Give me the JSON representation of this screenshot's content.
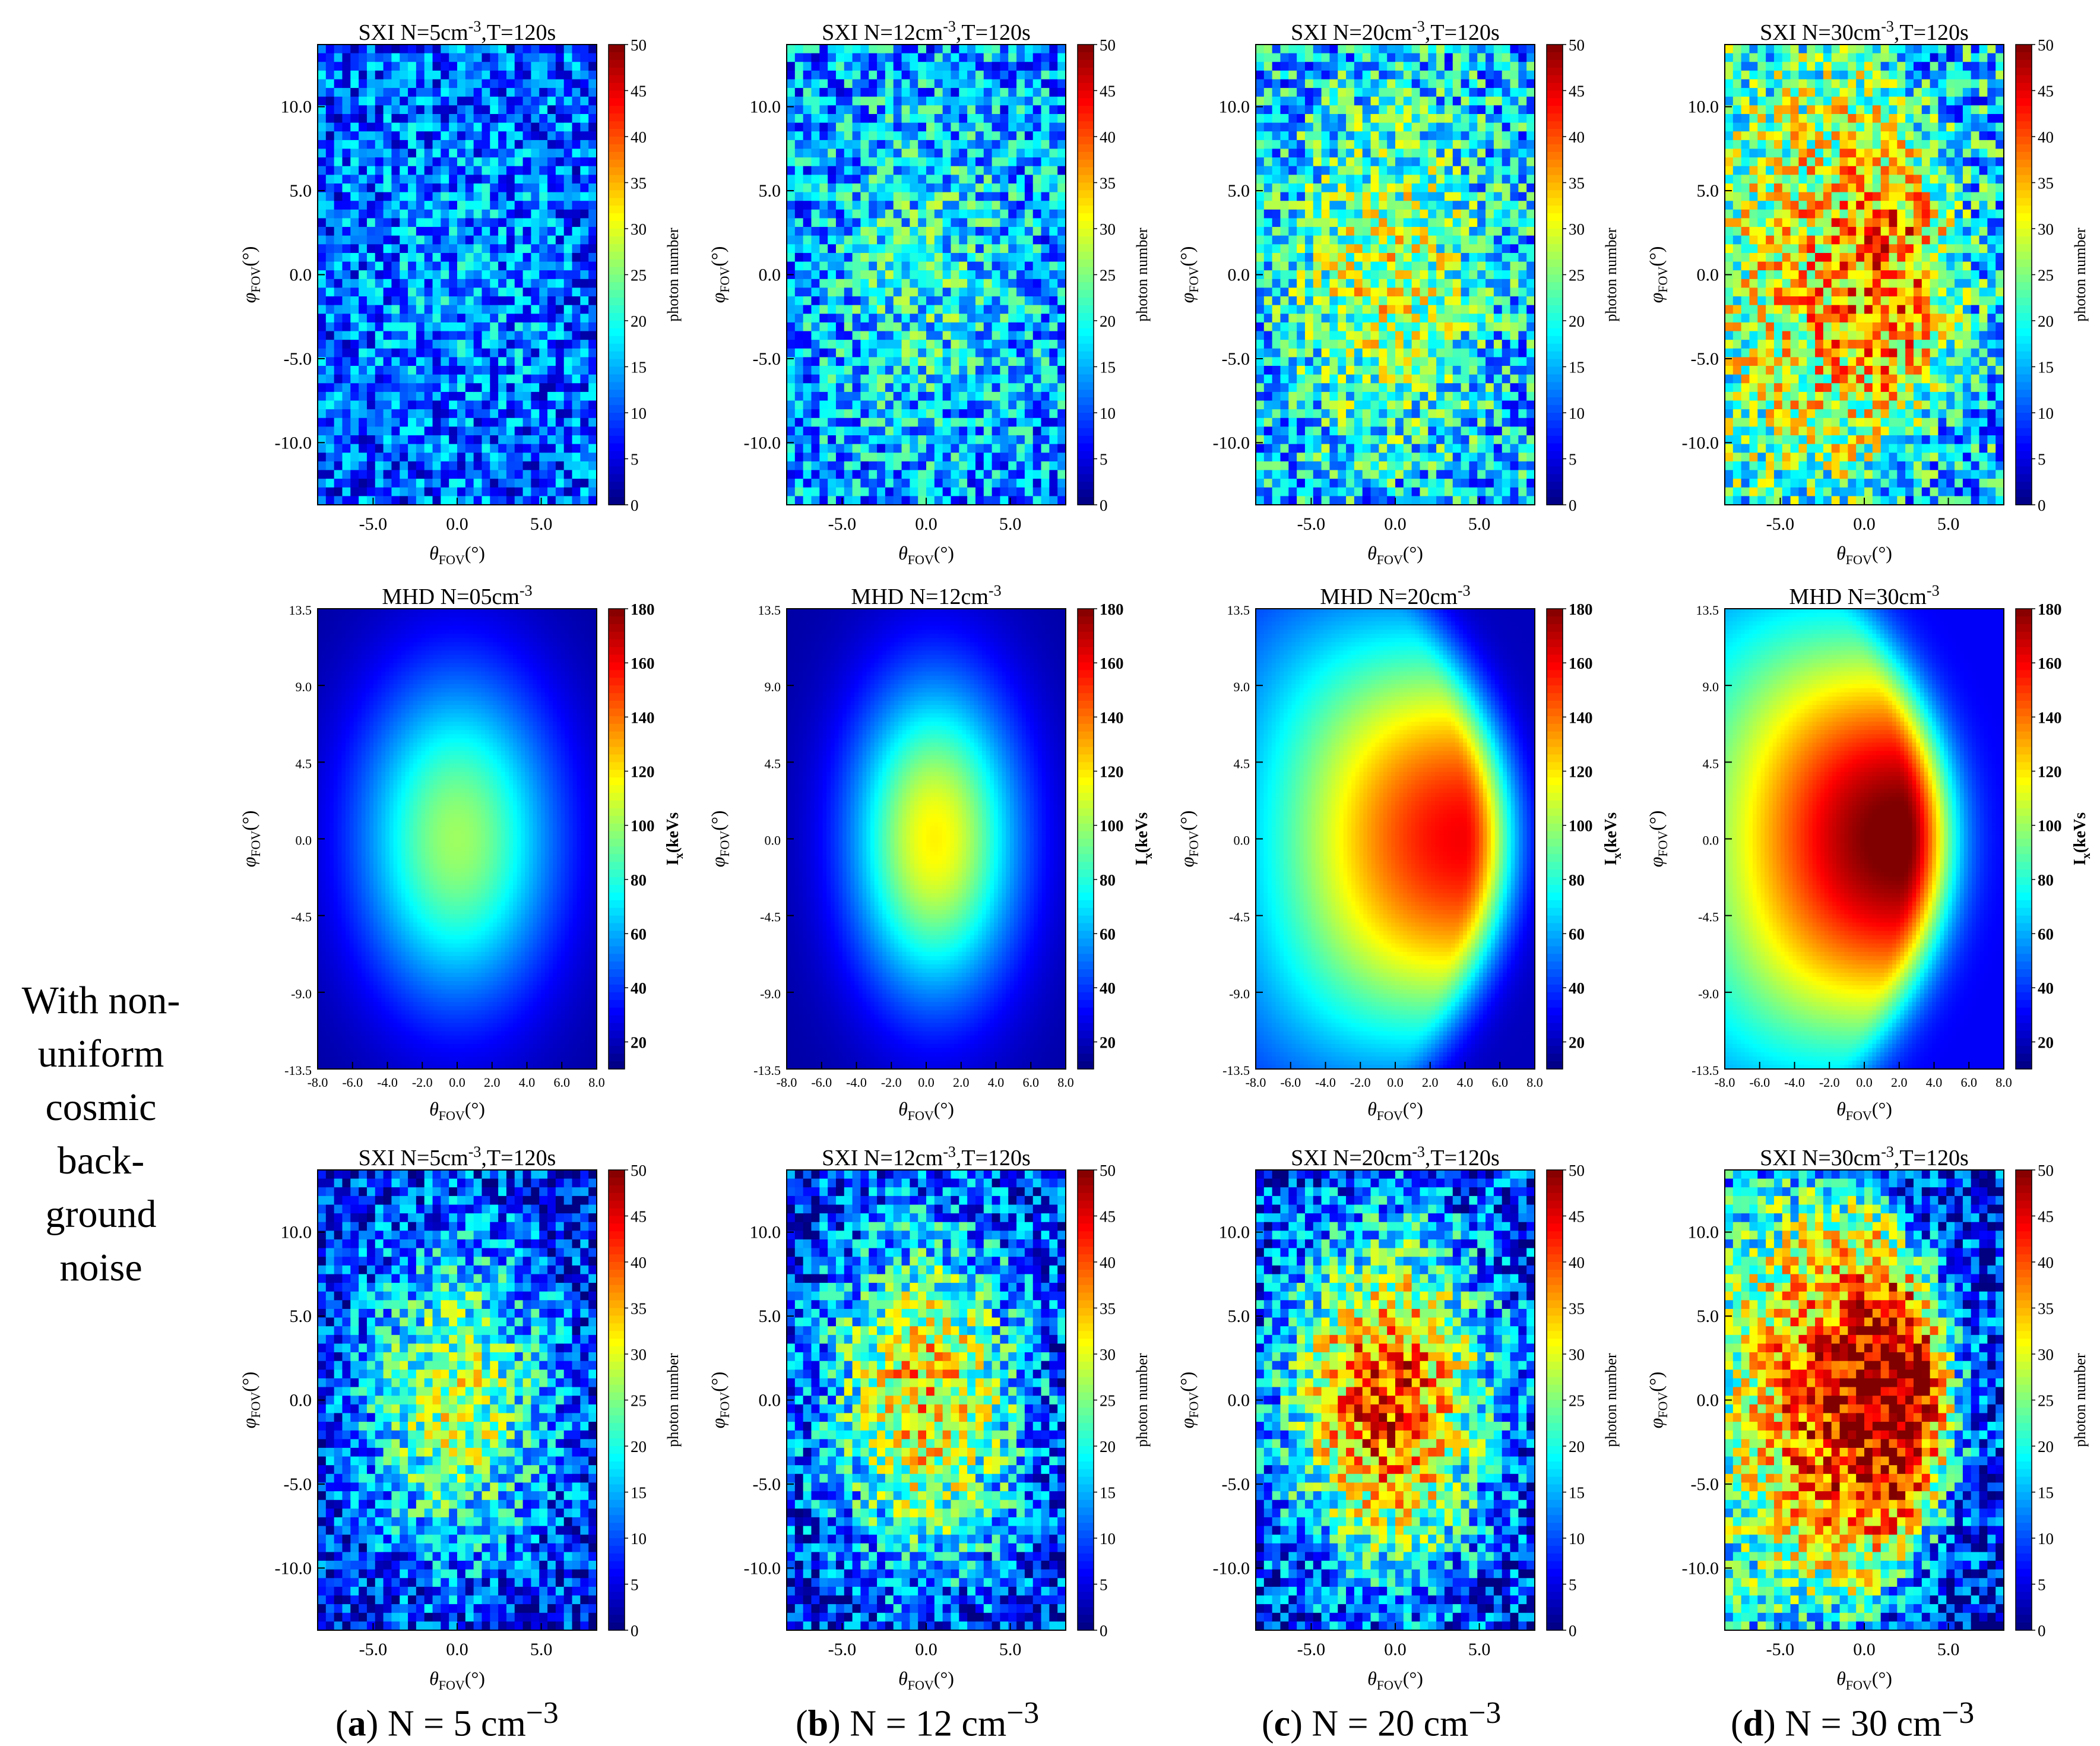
{
  "row_label": {
    "lines": [
      "With non-",
      "uniform",
      "cosmic",
      "back-",
      "ground",
      "noise"
    ]
  },
  "captions": [
    {
      "letter": "a",
      "text": " N = 5 cm",
      "sup": "−3"
    },
    {
      "letter": "b",
      "text": " N = 12 cm",
      "sup": "−3"
    },
    {
      "letter": "c",
      "text": " N = 20 cm",
      "sup": "−3"
    },
    {
      "letter": "d",
      "text": " N = 30 cm",
      "sup": "−3"
    }
  ],
  "colors": {
    "colormap": [
      "#00008f",
      "#0000ff",
      "#00a0ff",
      "#00ffff",
      "#70ff90",
      "#ffff00",
      "#ff9000",
      "#ff0000",
      "#800000"
    ]
  },
  "chart_data": [
    {
      "id": "sxi-a-top",
      "type": "heatmap",
      "panel": "a",
      "title_text": "SXI  N=5cm",
      "title_sup": "-3",
      "title_suffix": ",T=120s",
      "xlabel": "θ",
      "xlabel_sub": "FOV",
      "xlabel_unit": "(°)",
      "ylabel": "φ",
      "ylabel_sub": "FOV",
      "ylabel_unit": "(°)",
      "xlim": [
        -8.3,
        8.3
      ],
      "ylim": [
        -13.7,
        13.7
      ],
      "xticks": [
        "-5.0",
        "0.0",
        "5.0"
      ],
      "yticks": [
        "10.0",
        "5.0",
        "0.0",
        "-5.0",
        "-10.0"
      ],
      "colorbar": {
        "label": "photon number",
        "range": [
          0,
          50
        ],
        "ticks": [
          "50",
          "45",
          "40",
          "35",
          "30",
          "25",
          "20",
          "15",
          "10",
          "5",
          "0"
        ]
      },
      "field": {
        "background": 0.2,
        "peak": 0.08,
        "shape": "round",
        "center_x": 0,
        "noise": 0.18
      }
    },
    {
      "id": "sxi-b-top",
      "type": "heatmap",
      "panel": "b",
      "title_text": "SXI  N=12cm",
      "title_sup": "-3",
      "title_suffix": ",T=120s",
      "xlabel": "θ",
      "xlabel_sub": "FOV",
      "xlabel_unit": "(°)",
      "ylabel": "φ",
      "ylabel_sub": "FOV",
      "ylabel_unit": "(°)",
      "xlim": [
        -8.3,
        8.3
      ],
      "ylim": [
        -13.7,
        13.7
      ],
      "xticks": [
        "-5.0",
        "0.0",
        "5.0"
      ],
      "yticks": [
        "10.0",
        "5.0",
        "0.0",
        "-5.0",
        "-10.0"
      ],
      "colorbar": {
        "label": "photon number",
        "range": [
          0,
          50
        ],
        "ticks": [
          "50",
          "45",
          "40",
          "35",
          "30",
          "25",
          "20",
          "15",
          "10",
          "5",
          "0"
        ]
      },
      "field": {
        "background": 0.26,
        "peak": 0.14,
        "shape": "round",
        "center_x": 0,
        "noise": 0.2
      }
    },
    {
      "id": "sxi-c-top",
      "type": "heatmap",
      "panel": "c",
      "title_text": "SXI  N=20cm",
      "title_sup": "-3",
      "title_suffix": ",T=120s",
      "xlabel": "θ",
      "xlabel_sub": "FOV",
      "xlabel_unit": "(°)",
      "ylabel": "φ",
      "ylabel_sub": "FOV",
      "ylabel_unit": "(°)",
      "xlim": [
        -8.3,
        8.3
      ],
      "ylim": [
        -13.7,
        13.7
      ],
      "xticks": [
        "-5.0",
        "0.0",
        "5.0"
      ],
      "yticks": [
        "10.0",
        "5.0",
        "0.0",
        "-5.0",
        "-10.0"
      ],
      "colorbar": {
        "label": "photon number",
        "range": [
          0,
          50
        ],
        "ticks": [
          "50",
          "45",
          "40",
          "35",
          "30",
          "25",
          "20",
          "15",
          "10",
          "5",
          "0"
        ]
      },
      "field": {
        "background": 0.3,
        "peak": 0.28,
        "shape": "round",
        "center_x": -0.5,
        "noise": 0.22
      }
    },
    {
      "id": "sxi-d-top",
      "type": "heatmap",
      "panel": "d",
      "title_text": "SXI  N=30cm",
      "title_sup": "-3",
      "title_suffix": ",T=120s",
      "xlabel": "θ",
      "xlabel_sub": "FOV",
      "xlabel_unit": "(°)",
      "ylabel": "φ",
      "ylabel_sub": "FOV",
      "ylabel_unit": "(°)",
      "xlim": [
        -8.3,
        8.3
      ],
      "ylim": [
        -13.7,
        13.7
      ],
      "xticks": [
        "-5.0",
        "0.0",
        "5.0"
      ],
      "yticks": [
        "10.0",
        "5.0",
        "0.0",
        "-5.0",
        "-10.0"
      ],
      "colorbar": {
        "label": "photon number",
        "range": [
          0,
          50
        ],
        "ticks": [
          "50",
          "45",
          "40",
          "35",
          "30",
          "25",
          "20",
          "15",
          "10",
          "5",
          "0"
        ]
      },
      "field": {
        "background": 0.33,
        "peak": 0.42,
        "shape": "crescent",
        "center_x": -2,
        "noise": 0.24
      }
    },
    {
      "id": "mhd-a",
      "type": "heatmap",
      "panel": "a",
      "title_text": "MHD  N=05cm",
      "title_sup": "-3",
      "title_suffix": "",
      "xlabel": "θ",
      "xlabel_sub": "FOV",
      "xlabel_unit": "(°)",
      "ylabel": "φ",
      "ylabel_sub": "FOV",
      "ylabel_unit": "(°)",
      "xlim": [
        -8.0,
        8.0
      ],
      "ylim": [
        -13.5,
        13.5
      ],
      "xticks": [
        "-8.0",
        "-6.0",
        "-4.0",
        "-2.0",
        "0.0",
        "2.0",
        "4.0",
        "6.0",
        "8.0"
      ],
      "yticks": [
        "13.5",
        "9.0",
        "4.5",
        "0.0",
        "-4.5",
        "-9.0",
        "-13.5"
      ],
      "colorbar": {
        "label": "I",
        "label_sub": "x",
        "label_rest": "(keVs",
        "range": [
          10,
          180
        ],
        "ticks": [
          "180",
          "160",
          "140",
          "120",
          "100",
          "80",
          "60",
          "40",
          "20"
        ]
      },
      "field": {
        "peak": 100,
        "background": 15,
        "shape": "round",
        "center_x": 0
      }
    },
    {
      "id": "mhd-b",
      "type": "heatmap",
      "panel": "b",
      "title_text": "MHD  N=12cm",
      "title_sup": "-3",
      "title_suffix": "",
      "xlabel": "θ",
      "xlabel_sub": "FOV",
      "xlabel_unit": "(°)",
      "ylabel": "φ",
      "ylabel_sub": "FOV",
      "ylabel_unit": "(°)",
      "xlim": [
        -8.0,
        8.0
      ],
      "ylim": [
        -13.5,
        13.5
      ],
      "xticks": [
        "-8.0",
        "-6.0",
        "-4.0",
        "-2.0",
        "0.0",
        "2.0",
        "4.0",
        "6.0",
        "8.0"
      ],
      "yticks": [
        "13.5",
        "9.0",
        "4.5",
        "0.0",
        "-4.5",
        "-9.0",
        "-13.5"
      ],
      "colorbar": {
        "label": "I",
        "label_sub": "x",
        "label_rest": "(keVs",
        "range": [
          10,
          180
        ],
        "ticks": [
          "180",
          "160",
          "140",
          "120",
          "100",
          "80",
          "60",
          "40",
          "20"
        ]
      },
      "field": {
        "peak": 118,
        "background": 16,
        "shape": "lens",
        "center_x": 0.5
      }
    },
    {
      "id": "mhd-c",
      "type": "heatmap",
      "panel": "c",
      "title_text": "MHD  N=20cm",
      "title_sup": "-3",
      "title_suffix": "",
      "xlabel": "θ",
      "xlabel_sub": "FOV",
      "xlabel_unit": "(°)",
      "ylabel": "φ",
      "ylabel_sub": "FOV",
      "ylabel_unit": "(°)",
      "xlim": [
        -8.0,
        8.0
      ],
      "ylim": [
        -13.5,
        13.5
      ],
      "xticks": [
        "-8.0",
        "-6.0",
        "-4.0",
        "-2.0",
        "0.0",
        "2.0",
        "4.0",
        "6.0",
        "8.0"
      ],
      "yticks": [
        "13.5",
        "9.0",
        "4.5",
        "0.0",
        "-4.5",
        "-9.0",
        "-13.5"
      ],
      "colorbar": {
        "label": "I",
        "label_sub": "x",
        "label_rest": "(keVs",
        "range": [
          10,
          180
        ],
        "ticks": [
          "180",
          "160",
          "140",
          "120",
          "100",
          "80",
          "60",
          "40",
          "20"
        ]
      },
      "field": {
        "peak": 160,
        "background": 20,
        "shape": "crescent",
        "center_x": -0.5
      }
    },
    {
      "id": "mhd-d",
      "type": "heatmap",
      "panel": "d",
      "title_text": "MHD  N=30cm",
      "title_sup": "-3",
      "title_suffix": "",
      "xlabel": "θ",
      "xlabel_sub": "FOV",
      "xlabel_unit": "(°)",
      "ylabel": "φ",
      "ylabel_sub": "FOV",
      "ylabel_unit": "(°)",
      "xlim": [
        -8.0,
        8.0
      ],
      "ylim": [
        -13.5,
        13.5
      ],
      "xticks": [
        "-8.0",
        "-6.0",
        "-4.0",
        "-2.0",
        "0.0",
        "2.0",
        "4.0",
        "6.0",
        "8.0"
      ],
      "yticks": [
        "13.5",
        "9.0",
        "4.5",
        "0.0",
        "-4.5",
        "-9.0",
        "-13.5"
      ],
      "colorbar": {
        "label": "I",
        "label_sub": "x",
        "label_rest": "(keVs",
        "range": [
          10,
          180
        ],
        "ticks": [
          "180",
          "160",
          "140",
          "120",
          "100",
          "80",
          "60",
          "40",
          "20"
        ]
      },
      "field": {
        "peak": 185,
        "background": 30,
        "shape": "crescent",
        "center_x": -2.2
      }
    },
    {
      "id": "sxi-a-bottom",
      "type": "heatmap",
      "panel": "a",
      "title_text": "SXI  N=5cm",
      "title_sup": "-3",
      "title_suffix": ",T=120s",
      "xlabel": "θ",
      "xlabel_sub": "FOV",
      "xlabel_unit": "(°)",
      "ylabel": "φ",
      "ylabel_sub": "FOV",
      "ylabel_unit": "(°)",
      "xlim": [
        -8.3,
        8.3
      ],
      "ylim": [
        -13.7,
        13.7
      ],
      "xticks": [
        "-5.0",
        "0.0",
        "5.0"
      ],
      "yticks": [
        "10.0",
        "5.0",
        "0.0",
        "-5.0",
        "-10.0"
      ],
      "colorbar": {
        "label": "photon number",
        "range": [
          0,
          50
        ],
        "ticks": [
          "50",
          "45",
          "40",
          "35",
          "30",
          "25",
          "20",
          "15",
          "10",
          "5",
          "0"
        ]
      },
      "field": {
        "background": 0.1,
        "peak": 0.45,
        "shape": "round",
        "center_x": 0,
        "noise": 0.2
      }
    },
    {
      "id": "sxi-b-bottom",
      "type": "heatmap",
      "panel": "b",
      "title_text": "SXI  N=12cm",
      "title_sup": "-3",
      "title_suffix": ",T=120s",
      "xlabel": "θ",
      "xlabel_sub": "FOV",
      "xlabel_unit": "(°)",
      "ylabel": "φ",
      "ylabel_sub": "FOV",
      "ylabel_unit": "(°)",
      "xlim": [
        -8.3,
        8.3
      ],
      "ylim": [
        -13.7,
        13.7
      ],
      "xticks": [
        "-5.0",
        "0.0",
        "5.0"
      ],
      "yticks": [
        "10.0",
        "5.0",
        "0.0",
        "-5.0",
        "-10.0"
      ],
      "colorbar": {
        "label": "photon number",
        "range": [
          0,
          50
        ],
        "ticks": [
          "50",
          "45",
          "40",
          "35",
          "30",
          "25",
          "20",
          "15",
          "10",
          "5",
          "0"
        ]
      },
      "field": {
        "background": 0.12,
        "peak": 0.55,
        "shape": "round",
        "center_x": 0,
        "noise": 0.22
      }
    },
    {
      "id": "sxi-c-bottom",
      "type": "heatmap",
      "panel": "c",
      "title_text": "SXI  N=20cm",
      "title_sup": "-3",
      "title_suffix": ",T=120s",
      "xlabel": "θ",
      "xlabel_sub": "FOV",
      "xlabel_unit": "(°)",
      "ylabel": "φ",
      "ylabel_sub": "FOV",
      "ylabel_unit": "(°)",
      "xlim": [
        -8.3,
        8.3
      ],
      "ylim": [
        -13.7,
        13.7
      ],
      "xticks": [
        "-5.0",
        "0.0",
        "5.0"
      ],
      "yticks": [
        "10.0",
        "5.0",
        "0.0",
        "-5.0",
        "-10.0"
      ],
      "colorbar": {
        "label": "photon number",
        "range": [
          0,
          50
        ],
        "ticks": [
          "50",
          "45",
          "40",
          "35",
          "30",
          "25",
          "20",
          "15",
          "10",
          "5",
          "0"
        ]
      },
      "field": {
        "background": 0.12,
        "peak": 0.72,
        "shape": "round",
        "center_x": -0.5,
        "noise": 0.22
      }
    },
    {
      "id": "sxi-d-bottom",
      "type": "heatmap",
      "panel": "d",
      "title_text": "SXI  N=30cm",
      "title_sup": "-3",
      "title_suffix": ",T=120s",
      "xlabel": "θ",
      "xlabel_sub": "FOV",
      "xlabel_unit": "(°)",
      "ylabel": "φ",
      "ylabel_sub": "FOV",
      "ylabel_unit": "(°)",
      "xlim": [
        -8.3,
        8.3
      ],
      "ylim": [
        -13.7,
        13.7
      ],
      "xticks": [
        "-5.0",
        "0.0",
        "5.0"
      ],
      "yticks": [
        "10.0",
        "5.0",
        "0.0",
        "-5.0",
        "-10.0"
      ],
      "colorbar": {
        "label": "photon number",
        "range": [
          0,
          50
        ],
        "ticks": [
          "50",
          "45",
          "40",
          "35",
          "30",
          "25",
          "20",
          "15",
          "10",
          "5",
          "0"
        ]
      },
      "field": {
        "background": 0.13,
        "peak": 0.88,
        "shape": "crescent",
        "center_x": -2,
        "noise": 0.22
      }
    }
  ]
}
